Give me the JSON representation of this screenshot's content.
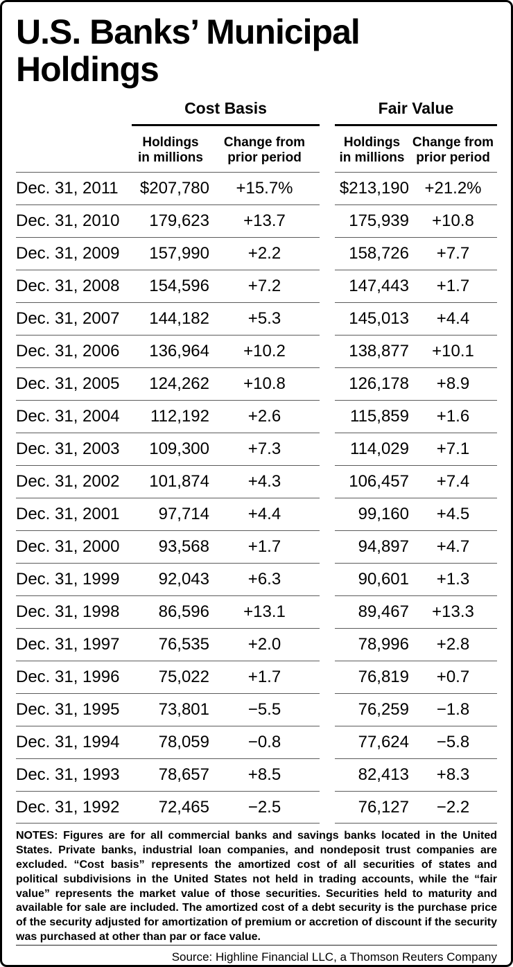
{
  "title": "U.S. Banks’ Municipal Holdings",
  "groups": [
    {
      "label": "Cost Basis"
    },
    {
      "label": "Fair Value"
    }
  ],
  "subheader": {
    "holdings_l1": "Holdings",
    "holdings_l2": "in millions",
    "change_l1": "Change from",
    "change_l2": "prior period"
  },
  "chart_data": {
    "type": "table",
    "title": "U.S. Banks’ Municipal Holdings",
    "column_groups": [
      "Cost Basis",
      "Fair Value"
    ],
    "columns": [
      "Date",
      "Cost Basis Holdings in millions",
      "Cost Basis Change from prior period",
      "Fair Value Holdings in millions",
      "Fair Value Change from prior period"
    ],
    "rows": [
      [
        "Dec. 31, 2011",
        "$207,780",
        "+15.7%",
        "$213,190",
        "+21.2%"
      ],
      [
        "Dec. 31, 2010",
        "179,623",
        "+13.7",
        "175,939",
        "+10.8"
      ],
      [
        "Dec. 31, 2009",
        "157,990",
        "+2.2",
        "158,726",
        "+7.7"
      ],
      [
        "Dec. 31, 2008",
        "154,596",
        "+7.2",
        "147,443",
        "+1.7"
      ],
      [
        "Dec. 31, 2007",
        "144,182",
        "+5.3",
        "145,013",
        "+4.4"
      ],
      [
        "Dec. 31, 2006",
        "136,964",
        "+10.2",
        "138,877",
        "+10.1"
      ],
      [
        "Dec. 31, 2005",
        "124,262",
        "+10.8",
        "126,178",
        "+8.9"
      ],
      [
        "Dec. 31, 2004",
        "112,192",
        "+2.6",
        "115,859",
        "+1.6"
      ],
      [
        "Dec. 31, 2003",
        "109,300",
        "+7.3",
        "114,029",
        "+7.1"
      ],
      [
        "Dec. 31, 2002",
        "101,874",
        "+4.3",
        "106,457",
        "+7.4"
      ],
      [
        "Dec. 31, 2001",
        "97,714",
        "+4.4",
        "99,160",
        "+4.5"
      ],
      [
        "Dec. 31, 2000",
        "93,568",
        "+1.7",
        "94,897",
        "+4.7"
      ],
      [
        "Dec. 31, 1999",
        "92,043",
        "+6.3",
        "90,601",
        "+1.3"
      ],
      [
        "Dec. 31, 1998",
        "86,596",
        "+13.1",
        "89,467",
        "+13.3"
      ],
      [
        "Dec. 31, 1997",
        "76,535",
        "+2.0",
        "78,996",
        "+2.8"
      ],
      [
        "Dec. 31, 1996",
        "75,022",
        "+1.7",
        "76,819",
        "+0.7"
      ],
      [
        "Dec. 31, 1995",
        "73,801",
        "−5.5",
        "76,259",
        "−1.8"
      ],
      [
        "Dec. 31, 1994",
        "78,059",
        "−0.8",
        "77,624",
        "−5.8"
      ],
      [
        "Dec. 31, 1993",
        "78,657",
        "+8.5",
        "82,413",
        "+8.3"
      ],
      [
        "Dec. 31, 1992",
        "72,465",
        "−2.5",
        "76,127",
        "−2.2"
      ]
    ]
  },
  "notes": {
    "text": "NOTES: Figures are for all commercial banks and savings banks located in the United States. Private banks, industrial loan companies, and nondeposit trust companies are excluded. “Cost basis” represents the amortized cost of all securities of states and political subdivisions in the United States not held in trading accounts, while the “fair value” represents the market value of those securities. Securities held to maturity and available for sale are included. The amortized cost of a debt security is the purchase price of the security adjusted for amortization of premium or accretion of discount if the security was purchased at other than par or face value."
  },
  "source": {
    "text": "Source: Highline Financial LLC, a Thomson Reuters Company"
  }
}
